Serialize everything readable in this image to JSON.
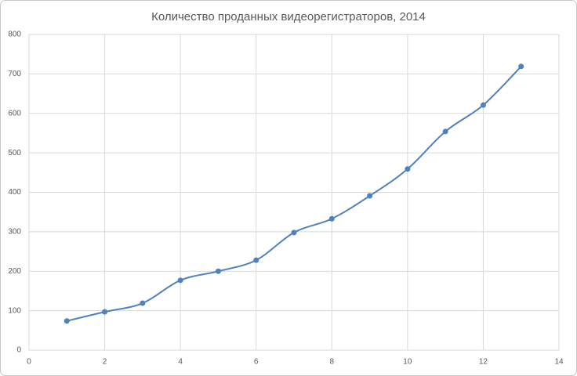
{
  "chart_data": {
    "type": "line",
    "smooth": true,
    "markers": true,
    "title": "Количество проданных видеорегистраторов, 2014",
    "x": [
      1,
      2,
      3,
      4,
      5,
      6,
      7,
      8,
      9,
      10,
      11,
      12,
      13
    ],
    "values": [
      74,
      97,
      119,
      177,
      200,
      228,
      298,
      333,
      391,
      459,
      554,
      621,
      719
    ],
    "color": "#4f81bd",
    "xlim": [
      0,
      14
    ],
    "xticks": [
      0,
      2,
      4,
      6,
      8,
      10,
      12,
      14
    ],
    "ylim": [
      0,
      800
    ],
    "yticks": [
      0,
      100,
      200,
      300,
      400,
      500,
      600,
      700,
      800
    ],
    "grid": true
  }
}
